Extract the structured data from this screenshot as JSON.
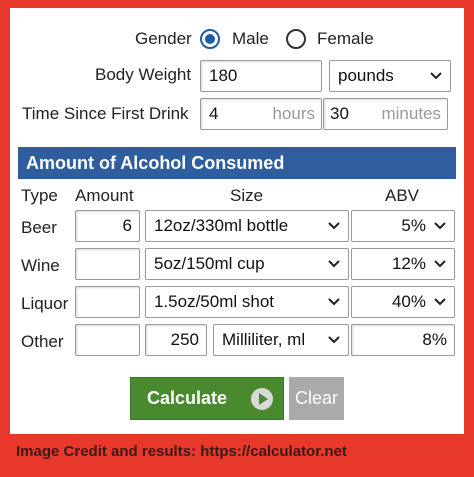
{
  "gender": {
    "label": "Gender",
    "options": [
      {
        "label": "Male",
        "selected": true
      },
      {
        "label": "Female",
        "selected": false
      }
    ]
  },
  "body_weight": {
    "label": "Body Weight",
    "value": "180",
    "unit_selected": "pounds"
  },
  "time_since": {
    "label": "Time Since First Drink",
    "hours_value": "4",
    "hours_unit": "hours",
    "minutes_value": "30",
    "minutes_unit": "minutes"
  },
  "section_title": "Amount of Alcohol Consumed",
  "columns": {
    "type": "Type",
    "amount": "Amount",
    "size": "Size",
    "abv": "ABV"
  },
  "rows": [
    {
      "type": "Beer",
      "amount": "6",
      "size": "12oz/330ml bottle",
      "abv": "5%"
    },
    {
      "type": "Wine",
      "amount": "",
      "size": "5oz/150ml cup",
      "abv": "12%"
    },
    {
      "type": "Liquor",
      "amount": "",
      "size": "1.5oz/50ml shot",
      "abv": "40%"
    },
    {
      "type": "Other",
      "amount": "",
      "size": "250",
      "size_unit": "Milliliter, ml",
      "abv": "8%"
    }
  ],
  "buttons": {
    "calculate": "Calculate",
    "clear": "Clear"
  },
  "credit": "Image Credit and results: https://calculator.net",
  "colors": {
    "background": "#e8382c",
    "header": "#2f5e9e",
    "calculate": "#4a8a2e",
    "radio": "#1f5aa7"
  }
}
